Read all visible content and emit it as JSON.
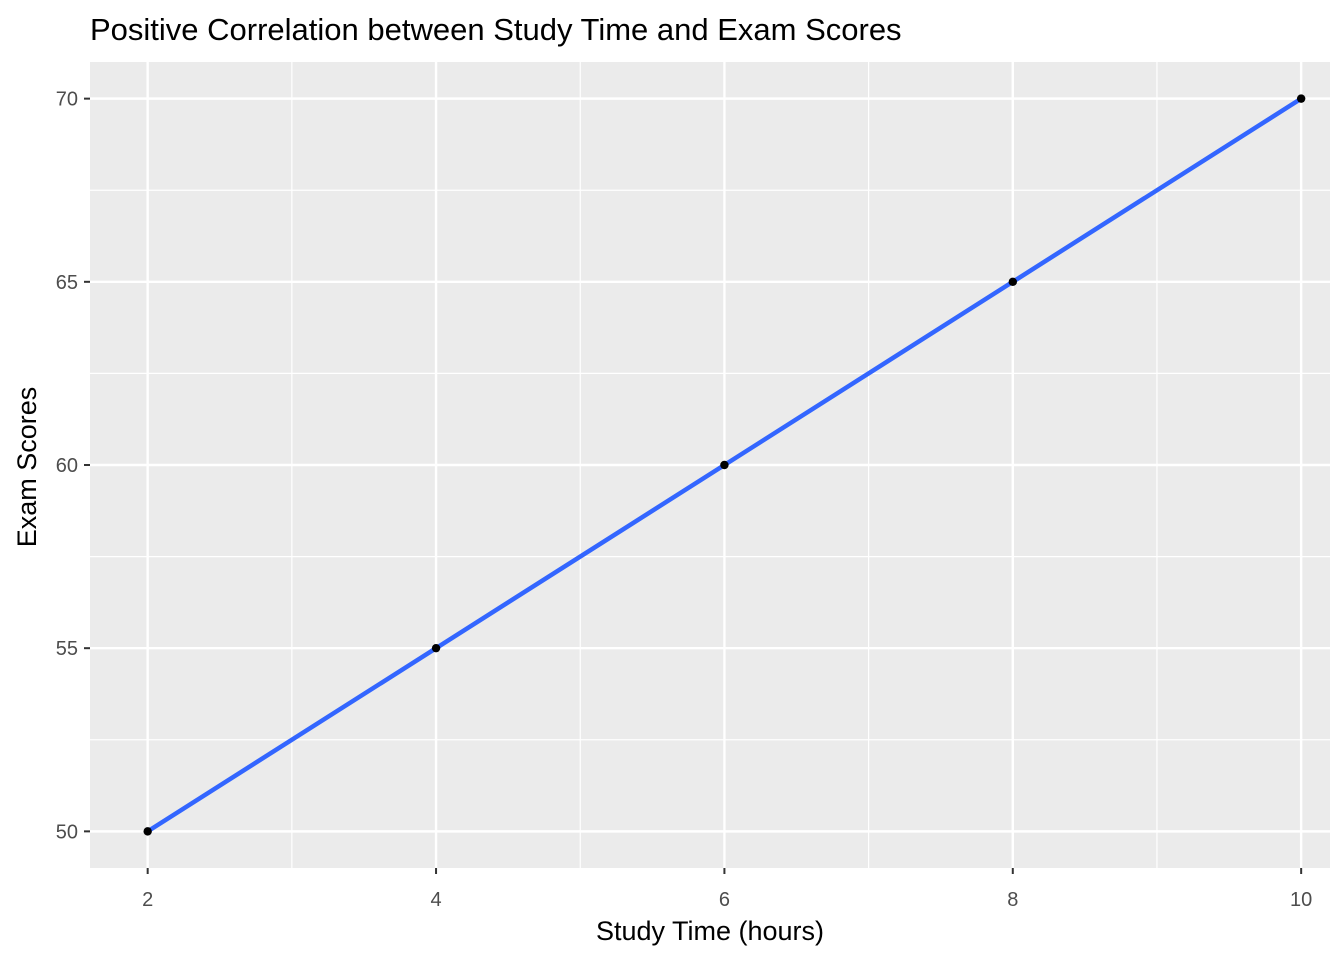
{
  "chart_data": {
    "type": "scatter",
    "title": "Positive Correlation between Study Time and Exam Scores",
    "xlabel": "Study Time (hours)",
    "ylabel": "Exam Scores",
    "xlim": [
      1.6,
      10.2
    ],
    "ylim": [
      49.0,
      71.0
    ],
    "x_ticks": [
      2,
      4,
      6,
      8,
      10
    ],
    "x_tick_labels": [
      "2",
      "4",
      "6",
      "8",
      "10"
    ],
    "x_minor_ticks": [
      3,
      5,
      7,
      9
    ],
    "y_ticks": [
      50,
      55,
      60,
      65,
      70
    ],
    "y_tick_labels": [
      "50",
      "55",
      "60",
      "65",
      "70"
    ],
    "y_minor_ticks": [
      52.5,
      57.5,
      62.5,
      67.5
    ],
    "grid": true,
    "series": [
      {
        "points": [
          {
            "x": 2,
            "y": 50
          },
          {
            "x": 4,
            "y": 55
          },
          {
            "x": 6,
            "y": 60
          },
          {
            "x": 8,
            "y": 65
          },
          {
            "x": 10,
            "y": 70
          }
        ],
        "point_color": "#000000"
      }
    ],
    "fit_line": {
      "type": "linear",
      "from": {
        "x": 2,
        "y": 50
      },
      "to": {
        "x": 10,
        "y": 70
      },
      "color": "#3366FF"
    },
    "panel_background": "#EBEBEB",
    "grid_color": "#FFFFFF"
  }
}
